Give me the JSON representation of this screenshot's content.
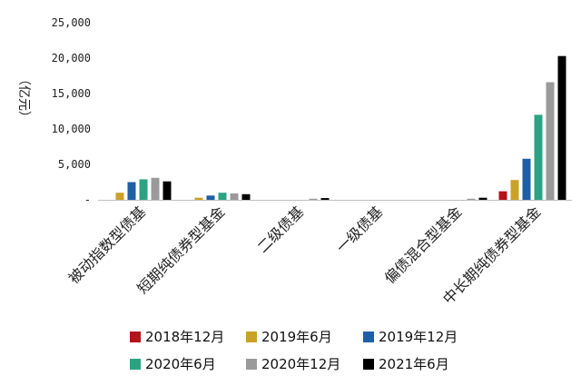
{
  "chart_data": {
    "type": "bar",
    "title": "",
    "xlabel": "",
    "ylabel": "（亿元）",
    "ylim": [
      0,
      25000
    ],
    "yticks": [
      0,
      5000,
      10000,
      15000,
      20000,
      25000
    ],
    "ytick_labels": [
      "-",
      "5,000",
      "10,000",
      "15,000",
      "20,000",
      "25,000"
    ],
    "categories": [
      "被动指数型债基",
      "短期纯债券型基金",
      "二级债基",
      "一级债基",
      "偏债混合型基金",
      "中长期纯债券型基金"
    ],
    "series": [
      {
        "name": "2018年12月",
        "color": "#b5121b",
        "values": [
          0,
          0,
          0,
          0,
          0,
          1200
        ]
      },
      {
        "name": "2019年6月",
        "color": "#c9a227",
        "values": [
          1000,
          300,
          0,
          0,
          0,
          2800
        ]
      },
      {
        "name": "2019年12月",
        "color": "#1f5fa8",
        "values": [
          2500,
          600,
          0,
          0,
          0,
          5800
        ]
      },
      {
        "name": "2020年6月",
        "color": "#2aa383",
        "values": [
          2900,
          1000,
          0,
          0,
          0,
          12000
        ]
      },
      {
        "name": "2020年12月",
        "color": "#9a9a9a",
        "values": [
          3100,
          900,
          150,
          0,
          150,
          16600
        ]
      },
      {
        "name": "2021年6月",
        "color": "#000000",
        "values": [
          2600,
          800,
          250,
          0,
          300,
          20300
        ]
      }
    ],
    "grid": false,
    "legend_position": "bottom"
  }
}
